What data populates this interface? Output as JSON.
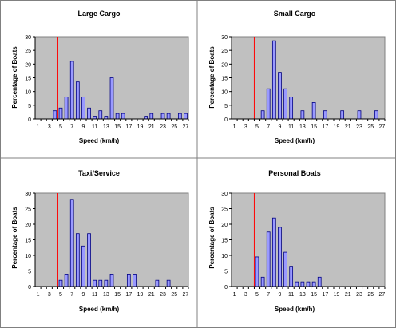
{
  "charts": [
    {
      "title": "Large Cargo",
      "xlabel": "Speed (km/h)",
      "ylabel": "Percentage of Boats"
    },
    {
      "title": "Small Cargo",
      "xlabel": "Speed (km/h)",
      "ylabel": "Percentage of Boats"
    },
    {
      "title": "Taxi/Service",
      "xlabel": "Speed (km/h)",
      "ylabel": "Percentage of Boats"
    },
    {
      "title": "Personal Boats",
      "xlabel": "Speed (km/h)",
      "ylabel": "Percentage of Boats"
    }
  ],
  "colors": {
    "plot_background": "#c0c0c0",
    "bar_fill": "#9999ff",
    "bar_stroke": "#000080",
    "reference_line": "#ff0000",
    "panel_border": "#808080"
  },
  "chart_data": [
    {
      "type": "bar",
      "title": "Large Cargo",
      "xlabel": "Speed (km/h)",
      "ylabel": "Percentage of Boats",
      "x": [
        4,
        5,
        6,
        7,
        8,
        9,
        10,
        11,
        12,
        13,
        14,
        15,
        16,
        20,
        21,
        23,
        24,
        26,
        27
      ],
      "values": [
        3,
        4,
        8,
        21,
        13.5,
        8,
        4,
        1,
        3,
        1,
        15,
        2,
        2,
        1,
        2,
        2,
        2,
        2,
        2
      ],
      "xticks": [
        "1",
        "3",
        "5",
        "7",
        "9",
        "11",
        "13",
        "15",
        "17",
        "19",
        "21",
        "23",
        "25",
        "27"
      ],
      "yticks": [
        "0",
        "5",
        "10",
        "15",
        "20",
        "25",
        "30"
      ],
      "ylim": [
        0,
        30
      ],
      "reference_line_x": 5,
      "grid": false
    },
    {
      "type": "bar",
      "title": "Small Cargo",
      "xlabel": "Speed (km/h)",
      "ylabel": "Percentage of Boats",
      "x": [
        6,
        7,
        8,
        9,
        10,
        11,
        13,
        15,
        17,
        20,
        23,
        26
      ],
      "values": [
        3,
        11,
        28.5,
        17,
        11,
        8,
        3,
        6,
        3,
        3,
        3,
        3
      ],
      "xticks": [
        "1",
        "3",
        "5",
        "7",
        "9",
        "11",
        "13",
        "15",
        "17",
        "19",
        "21",
        "23",
        "25",
        "27"
      ],
      "yticks": [
        "0",
        "5",
        "10",
        "15",
        "20",
        "25",
        "30"
      ],
      "ylim": [
        0,
        30
      ],
      "reference_line_x": 5,
      "grid": false
    },
    {
      "type": "bar",
      "title": "Taxi/Service",
      "xlabel": "Speed (km/h)",
      "ylabel": "Percentage of Boats",
      "x": [
        5,
        6,
        7,
        8,
        9,
        10,
        11,
        12,
        13,
        14,
        17,
        18,
        22,
        24
      ],
      "values": [
        2,
        4,
        28,
        17,
        13,
        17,
        2,
        2,
        2,
        4,
        4,
        4,
        2,
        2
      ],
      "xticks": [
        "1",
        "3",
        "5",
        "7",
        "9",
        "11",
        "13",
        "15",
        "17",
        "19",
        "21",
        "23",
        "25",
        "27"
      ],
      "yticks": [
        "0",
        "5",
        "10",
        "15",
        "20",
        "25",
        "30"
      ],
      "ylim": [
        0,
        30
      ],
      "reference_line_x": 5,
      "grid": false
    },
    {
      "type": "bar",
      "title": "Personal Boats",
      "xlabel": "Speed (km/h)",
      "ylabel": "Percentage of Boats",
      "x": [
        5,
        6,
        7,
        8,
        9,
        10,
        11,
        12,
        13,
        14,
        15,
        16
      ],
      "values": [
        9.5,
        3,
        17.5,
        22,
        19,
        11,
        6.5,
        1.5,
        1.5,
        1.5,
        1.5,
        3
      ],
      "xticks": [
        "1",
        "3",
        "5",
        "7",
        "9",
        "11",
        "13",
        "15",
        "17",
        "19",
        "21",
        "23",
        "25",
        "27"
      ],
      "yticks": [
        "0",
        "5",
        "10",
        "15",
        "20",
        "25",
        "30"
      ],
      "ylim": [
        0,
        30
      ],
      "reference_line_x": 5,
      "grid": false
    }
  ]
}
